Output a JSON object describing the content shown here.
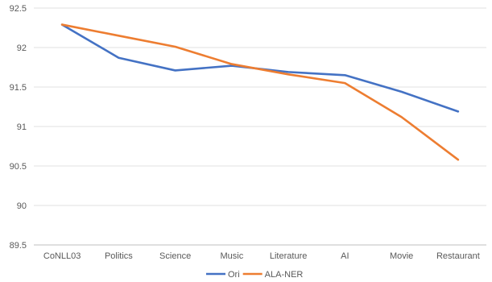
{
  "chart_data": {
    "type": "line",
    "categories": [
      "CoNLL03",
      "Politics",
      "Science",
      "Music",
      "Literature",
      "AI",
      "Movie",
      "Restaurant"
    ],
    "series": [
      {
        "name": "Ori",
        "color": "#4472C4",
        "values": [
          92.29,
          91.87,
          91.71,
          91.77,
          91.69,
          91.65,
          91.44,
          91.19
        ]
      },
      {
        "name": "ALA-NER",
        "color": "#ED7D31",
        "values": [
          92.29,
          92.15,
          92.01,
          91.79,
          91.66,
          91.55,
          91.12,
          90.58
        ]
      }
    ],
    "ylim": [
      89.5,
      92.5
    ],
    "yticks": [
      "89.5",
      "90",
      "90.5",
      "91",
      "91.5",
      "92",
      "92.5"
    ],
    "grid": true,
    "legend_position": "bottom"
  }
}
